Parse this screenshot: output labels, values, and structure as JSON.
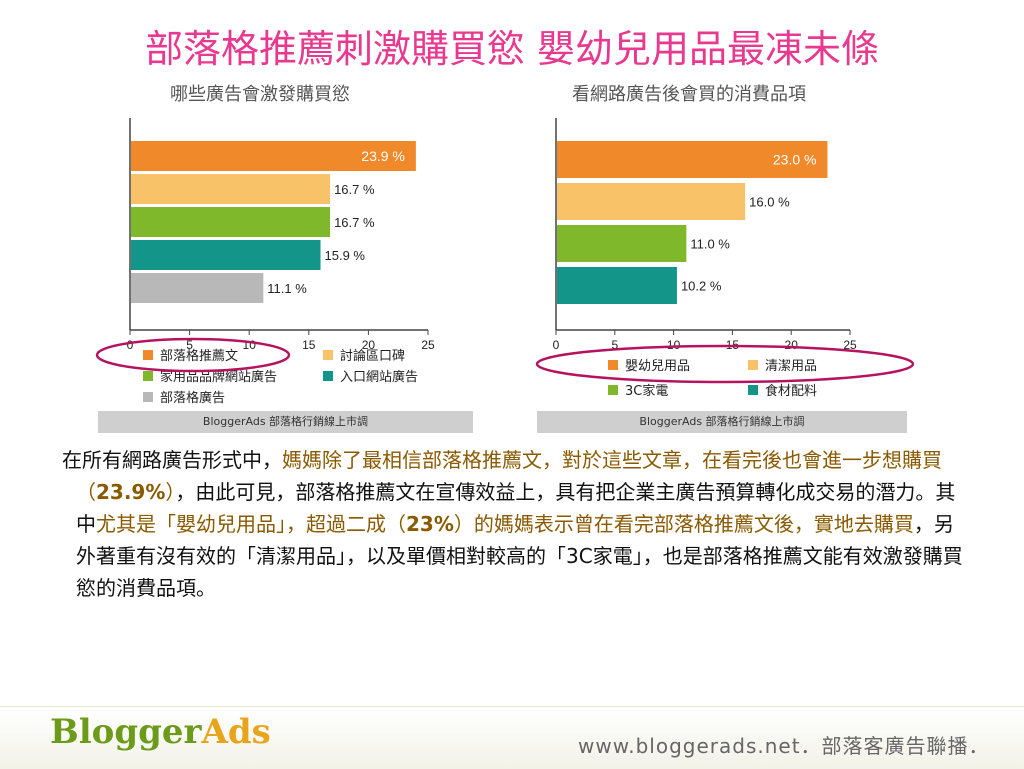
{
  "page_title": "部落格推薦刺激購買慾 嬰幼兒用品最凍未條",
  "chart_data": [
    {
      "type": "bar",
      "orientation": "horizontal",
      "title": "哪些廣告會激發購買慾",
      "categories": [
        "部落格推薦文",
        "討論區口碑",
        "家用品品牌網站廣告",
        "入口網站廣告",
        "部落格廣告"
      ],
      "values": [
        23.9,
        16.7,
        16.7,
        15.9,
        11.1
      ],
      "value_labels": [
        "23.9 %",
        "16.7 %",
        "16.7 %",
        "15.9 %",
        "11.1 %"
      ],
      "colors": [
        "#f0892a",
        "#f8c368",
        "#7fb82a",
        "#14958a",
        "#b8b8b8"
      ],
      "xlim": [
        0,
        25
      ],
      "xticks": [
        "0",
        "5",
        "10",
        "15",
        "20",
        "25"
      ],
      "legend": [
        "部落格推薦文",
        "討論區口碑",
        "家用品品牌網站廣告",
        "入口網站廣告",
        "部落格廣告"
      ],
      "source": "BloggerAds 部落格行銷線上市調",
      "grid": false
    },
    {
      "type": "bar",
      "orientation": "horizontal",
      "title": "看網路廣告後會買的消費品項",
      "categories": [
        "嬰幼兒用品",
        "清潔用品",
        "3C家電",
        "食材配料"
      ],
      "values": [
        23.0,
        16.0,
        11.0,
        10.2
      ],
      "value_labels": [
        "23.0 %",
        "16.0 %",
        "11.0 %",
        "10.2 %"
      ],
      "colors": [
        "#f0892a",
        "#f8c368",
        "#7fb82a",
        "#14958a"
      ],
      "xlim": [
        0,
        25
      ],
      "xticks": [
        "0",
        "5",
        "10",
        "15",
        "20",
        "25"
      ],
      "legend": [
        "嬰幼兒用品",
        "清潔用品",
        "3C家電",
        "食材配料"
      ],
      "source": "BloggerAds 部落格行銷線上市調",
      "grid": false
    }
  ],
  "body": {
    "s1": "在所有網路廣告形式中，",
    "s2": "媽媽除了最相信部落格推薦文，對於這些文章，在看完後也會進一步想購買（",
    "s3": "23.9%",
    "s4": "）",
    "s5": "，由此可見，部落格推薦文在宣傳效益上，具有把企業主廣告預算轉化成交易的潛力。其中",
    "s6": "尤其是「嬰幼兒用品」，超過二成（",
    "s7": "23%",
    "s8": "）的媽媽表示曾在看完部落格推薦文後，實地去購買",
    "s9": "，另外著重有沒有效的「清潔用品」，以及單價相對較高的「",
    "s10": "3C",
    "s11": "家電」，也是部落格推薦文能有效激發購買慾的消費品項。"
  },
  "footer": {
    "logo_part1": "Blogger",
    "logo_part2": "Ads",
    "url_text": "www.bloggerads.net．部落客廣告聯播．"
  }
}
